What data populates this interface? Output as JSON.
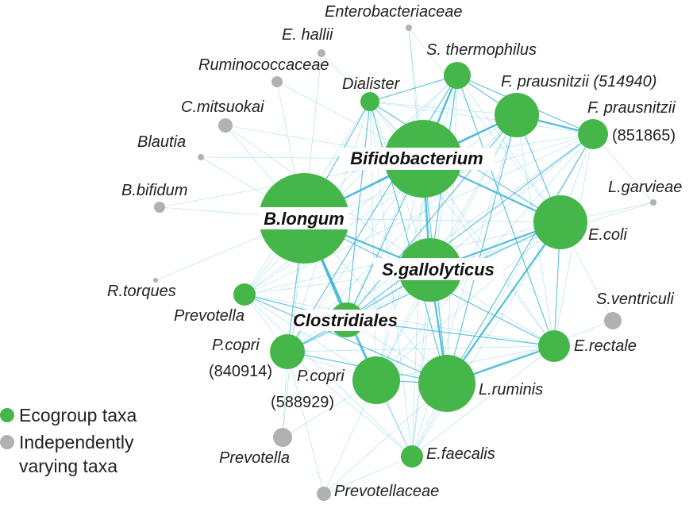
{
  "colors": {
    "ecogroup": "#45b649",
    "independent": "#b1b1b1",
    "edge": "#3fb6d6"
  },
  "legend": {
    "ecogroup_label": "Ecogroup taxa",
    "independent_label_line1": "Independently",
    "independent_label_line2": "varying taxa"
  },
  "nodes": {
    "b_longum": "B.longum",
    "bifidobacterium": "Bifidobacterium",
    "s_gallolyticus": "S.gallolyticus",
    "clostridiales": "Clostridiales",
    "e_coli": "E.coli",
    "f_prausnitzii_514940": "F. prausnitzii (514940)",
    "f_prausnitzii_851865_a": "F. prausnitzii",
    "f_prausnitzii_851865_b": "(851865)",
    "s_thermophilus": "S. thermophilus",
    "dialister": "Dialister",
    "prevotella_green": "Prevotella",
    "p_copri_840914_a": "P.copri",
    "p_copri_840914_b": "(840914)",
    "p_copri_588929_a": "P.copri",
    "p_copri_588929_b": "(588929)",
    "l_ruminis": "L.ruminis",
    "e_rectale": "E.rectale",
    "e_faecalis": "E.faecalis",
    "enterobacteriaceae": "Enterobacteriaceae",
    "e_hallii": "E. hallii",
    "ruminococcaceae": "Ruminococcaceae",
    "c_mitsuokai": "C.mitsuokai",
    "blautia": "Blautia",
    "b_bifidum": "B.bifidum",
    "r_torques": "R.torques",
    "l_garvieae": "L.garvieae",
    "s_ventriculi": "S.ventriculi",
    "prevotella_gray": "Prevotella",
    "prevotellaceae": "Prevotellaceae"
  }
}
